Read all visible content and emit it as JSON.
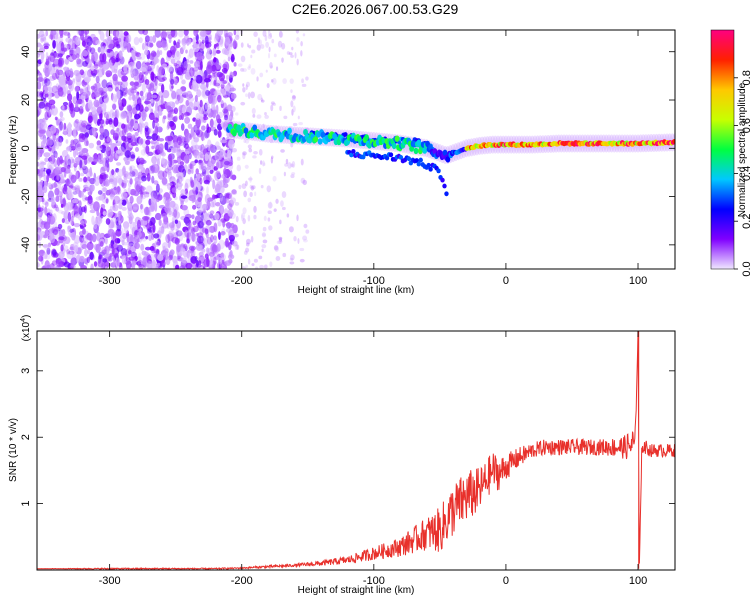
{
  "title": "C2E6.2026.067.00.53.G29",
  "chart_data": [
    {
      "type": "heatmap",
      "name": "spectrogram",
      "xlabel": "Height of straight line (km)",
      "ylabel": "Frequency (Hz)",
      "xlim": [
        -355,
        128
      ],
      "ylim": [
        -50,
        49
      ],
      "xticks": [
        -300,
        -200,
        -100,
        0,
        100
      ],
      "yticks": [
        -40,
        -20,
        0,
        20,
        40
      ],
      "colorbar": {
        "label": "Normalized spectral amplitude",
        "range": [
          0,
          1
        ],
        "ticks": [
          0.0,
          0.2,
          0.4,
          0.6,
          0.8
        ],
        "tick_labels": [
          "0.0",
          "0.2",
          "0.4",
          "0.6",
          "0.8"
        ],
        "colormap": [
          "#f0e8ff",
          "#8000ff",
          "#0000ff",
          "#00c8ff",
          "#00ff40",
          "#c8ff00",
          "#ffc800",
          "#ff2000",
          "#ff0080"
        ]
      },
      "ridge": {
        "x": [
          -210,
          -180,
          -150,
          -120,
          -100,
          -80,
          -60,
          -45,
          -40,
          -30,
          -20,
          -10,
          0,
          20,
          40,
          60,
          80,
          100,
          128
        ],
        "y": [
          8,
          6,
          5,
          4,
          3,
          2,
          0,
          -3,
          -2,
          0,
          1,
          1.5,
          1.5,
          1.5,
          2,
          2,
          2,
          2,
          2.5
        ]
      },
      "upper_branch": {
        "x": [
          -150,
          -130,
          -110,
          -90,
          -75,
          -65,
          -55
        ],
        "y": [
          6,
          5,
          4,
          3,
          3,
          2,
          0
        ]
      },
      "lower_branch": {
        "x": [
          -120,
          -100,
          -80,
          -65,
          -55,
          -48,
          -45
        ],
        "y": [
          -2,
          -3,
          -4,
          -6,
          -8,
          -12,
          -18
        ]
      },
      "noise_region_x": [
        -355,
        -205
      ]
    },
    {
      "type": "line",
      "name": "snr",
      "xlabel": "Height of straight line (km)",
      "ylabel": "SNR (10 * v/v)",
      "multiplier": "(x10",
      "multiplier_exp": "4",
      "multiplier_close": ")",
      "xlim": [
        -355,
        128
      ],
      "ylim": [
        0,
        3.6
      ],
      "xticks": [
        -300,
        -200,
        -100,
        0,
        100
      ],
      "yticks": [
        1,
        2,
        3
      ],
      "color": "#e8302b",
      "x": [
        -355,
        -300,
        -250,
        -220,
        -200,
        -180,
        -160,
        -140,
        -120,
        -110,
        -100,
        -90,
        -80,
        -70,
        -60,
        -50,
        -40,
        -30,
        -20,
        -15,
        -10,
        -5,
        0,
        10,
        20,
        30,
        40,
        50,
        60,
        70,
        80,
        90,
        98,
        100,
        101,
        103,
        105,
        110,
        115,
        120,
        128
      ],
      "y": [
        0.02,
        0.02,
        0.02,
        0.02,
        0.03,
        0.05,
        0.07,
        0.1,
        0.15,
        0.2,
        0.25,
        0.3,
        0.35,
        0.45,
        0.55,
        0.6,
        0.9,
        1.1,
        1.2,
        1.35,
        1.5,
        1.45,
        1.55,
        1.7,
        1.8,
        1.85,
        1.85,
        1.85,
        1.85,
        1.85,
        1.85,
        1.85,
        1.9,
        3.6,
        0.05,
        1.9,
        1.85,
        1.8,
        1.8,
        1.8,
        1.8
      ],
      "noise_scale": [
        0,
        0.01,
        0.01,
        0.01,
        0.01,
        0.02,
        0.02,
        0.04,
        0.06,
        0.08,
        0.1,
        0.12,
        0.15,
        0.2,
        0.25,
        0.35,
        0.4,
        0.4,
        0.35,
        0.3,
        0.3,
        0.25,
        0.2,
        0.15,
        0.12,
        0.12,
        0.12,
        0.12,
        0.12,
        0.12,
        0.14,
        0.18,
        0.3,
        0,
        0,
        0.15,
        0.12,
        0.1,
        0.1,
        0.1,
        0.1
      ]
    }
  ]
}
